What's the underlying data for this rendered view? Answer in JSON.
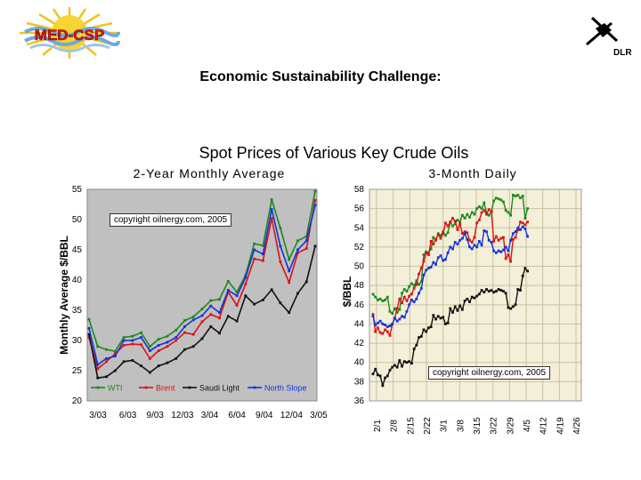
{
  "slide": {
    "title": "Economic Sustainability Challenge:",
    "logo_left_text": "MED-CSP",
    "logo_right_text": "DLR"
  },
  "chart_data": {
    "type": "line",
    "title": "Spot Prices of Various Key Crude Oils",
    "panels": [
      {
        "subtitle": "2-Year Monthly Average",
        "ylabel": "Monthly Average   $/BBL",
        "ylim": [
          20,
          55
        ],
        "yticks": [
          20,
          25,
          30,
          35,
          40,
          45,
          50,
          55
        ],
        "xtick_labels": [
          "3/03",
          "6/03",
          "9/03",
          "12/03",
          "3/04",
          "6/04",
          "9/04",
          "12/04",
          "3/05"
        ],
        "copyright": "copyright oilnergy.com, 2005",
        "background": "#c0c0c0",
        "series": [
          {
            "name": "WTI",
            "color": "#1a8a1a",
            "values": [
              33.5,
              29.0,
              28.5,
              28.2,
              30.5,
              30.7,
              31.3,
              29.0,
              30.2,
              30.7,
              31.7,
              33.3,
              33.9,
              35.2,
              36.6,
              36.8,
              39.8,
              38.0,
              40.8,
              46.0,
              45.7,
              53.3,
              48.6,
              43.4,
              46.5,
              47.2,
              54.7
            ]
          },
          {
            "name": "Brent",
            "color": "#dd1111",
            "values": [
              30.5,
              25.3,
              26.5,
              27.8,
              29.2,
              29.4,
              29.3,
              27.0,
              28.3,
              29.0,
              30.0,
              31.3,
              31.0,
              33.1,
              34.3,
              33.7,
              38.0,
              35.8,
              39.3,
              43.5,
              43.2,
              50.2,
              43.0,
              39.6,
              44.5,
              45.2,
              53.2
            ]
          },
          {
            "name": "Saudi Light",
            "color": "#111111",
            "values": [
              31.0,
              23.8,
              24.0,
              25.0,
              26.5,
              26.7,
              25.8,
              24.7,
              25.8,
              26.3,
              27.0,
              28.5,
              29.0,
              30.3,
              32.3,
              31.2,
              34.0,
              33.2,
              37.4,
              36.0,
              36.7,
              38.4,
              36.2,
              34.6,
              37.8,
              39.7,
              45.6
            ]
          },
          {
            "name": "North Slope",
            "color": "#1133dd",
            "values": [
              32.0,
              26.0,
              27.0,
              27.4,
              30.0,
              30.0,
              30.5,
              28.3,
              29.2,
              29.7,
              30.5,
              32.3,
              33.4,
              34.1,
              35.7,
              34.6,
              38.3,
              37.4,
              40.4,
              45.0,
              44.3,
              51.7,
              45.6,
              41.5,
              45.0,
              46.5,
              52.4
            ]
          }
        ]
      },
      {
        "subtitle": "3-Month Daily",
        "ylabel": "$/BBL",
        "ylim": [
          36,
          58
        ],
        "yticks": [
          36,
          38,
          40,
          42,
          44,
          46,
          48,
          50,
          52,
          54,
          56,
          58
        ],
        "xtick_labels": [
          "2/1",
          "2/8",
          "2/15",
          "2/22",
          "3/1",
          "3/8",
          "3/15",
          "3/22",
          "3/29",
          "4/5",
          "4/12",
          "4/19",
          "4/26"
        ],
        "copyright": "copyright oilnergy.com, 2005",
        "background": "#f3efd8",
        "series": [
          {
            "name": "WTI",
            "color": "#1a8a1a",
            "x": [
              0,
              1,
              2,
              3,
              4,
              5,
              6,
              7,
              8,
              9,
              10,
              11,
              12,
              13,
              14,
              15,
              16,
              17,
              18,
              19,
              20,
              21,
              22,
              23,
              24,
              25,
              26,
              27,
              28,
              29,
              30,
              31,
              32,
              33,
              34,
              35,
              36,
              37,
              38,
              39,
              40,
              41,
              42,
              43,
              44,
              45,
              46,
              47,
              48,
              49,
              50,
              51,
              52,
              53,
              54,
              55,
              56,
              57,
              58,
              59,
              60,
              61,
              62,
              63,
              64
            ],
            "values": [
              47.1,
              46.8,
              46.5,
              46.6,
              46.4,
              46.5,
              46.8,
              45.3,
              45.1,
              45.6,
              45.2,
              45.5,
              47.2,
              47.6,
              47.4,
              47.9,
              48.2,
              48.0,
              48.5,
              48.1,
              48.4,
              51.2,
              51.5,
              51.4,
              51.8,
              53.0,
              52.7,
              53.4,
              53.2,
              53.6,
              53.2,
              53.5,
              54.6,
              54.2,
              54.4,
              54.8,
              54.6,
              55.3,
              55.0,
              55.4,
              55.1,
              55.6,
              55.4,
              56.0,
              56.2,
              56.0,
              56.6,
              55.6,
              55.3,
              55.7,
              56.8,
              57.1,
              57.0,
              56.9,
              56.7,
              55.8,
              55.6,
              55.3,
              57.4,
              57.3,
              57.4,
              57.1,
              57.3,
              55.0,
              56.0
            ]
          },
          {
            "name": "Brent",
            "color": "#dd1111",
            "x": [
              0,
              1,
              2,
              3,
              4,
              5,
              6,
              7,
              8,
              9,
              10,
              11,
              12,
              13,
              14,
              15,
              16,
              17,
              18,
              19,
              20,
              21,
              22,
              23,
              24,
              25,
              26,
              27,
              28,
              29,
              30,
              31,
              32,
              33,
              34,
              35,
              36,
              37,
              38,
              39,
              40,
              41,
              42,
              43,
              44,
              45,
              46,
              47,
              48,
              49,
              50,
              51,
              52,
              53,
              54,
              55,
              56,
              57,
              58,
              59,
              60,
              61,
              62,
              63,
              64
            ],
            "values": [
              45.0,
              43.2,
              43.6,
              43.1,
              43.0,
              43.4,
              43.2,
              42.8,
              44.0,
              44.6,
              45.6,
              46.6,
              46.2,
              46.8,
              46.4,
              46.9,
              47.1,
              47.7,
              48.1,
              49.2,
              49.8,
              50.5,
              51.4,
              51.2,
              52.6,
              52.3,
              52.8,
              53.3,
              52.9,
              53.4,
              54.5,
              54.2,
              54.6,
              55.0,
              54.7,
              53.8,
              54.4,
              53.4,
              53.6,
              53.5,
              52.7,
              52.5,
              53.0,
              54.5,
              54.8,
              55.6,
              55.8,
              55.4,
              55.9,
              55.7,
              52.6,
              53.1,
              52.7,
              52.9,
              53.0,
              50.8,
              51.2,
              50.5,
              52.8,
              53.0,
              53.8,
              54.6,
              54.5,
              54.3,
              54.6
            ]
          },
          {
            "name": "Saudi Light",
            "color": "#111111",
            "x": [
              0,
              1,
              2,
              3,
              4,
              5,
              6,
              7,
              8,
              9,
              10,
              11,
              12,
              13,
              14,
              15,
              16,
              17,
              18,
              19,
              20,
              21,
              22,
              23,
              24,
              25,
              26,
              27,
              28,
              29,
              30,
              31,
              32,
              33,
              34,
              35,
              36,
              37,
              38,
              39,
              40,
              41,
              42,
              43,
              44,
              45,
              46,
              47,
              48,
              49,
              50,
              51,
              52,
              53,
              54,
              55,
              56,
              57,
              58,
              59,
              60,
              61,
              62,
              63,
              64
            ],
            "values": [
              38.8,
              39.3,
              38.7,
              38.6,
              37.6,
              38.4,
              38.6,
              39.2,
              39.5,
              39.7,
              39.5,
              40.2,
              39.6,
              40.1,
              40.0,
              40.1,
              39.9,
              41.4,
              41.8,
              42.6,
              42.7,
              43.4,
              43.2,
              43.6,
              43.7,
              44.9,
              44.5,
              44.8,
              44.6,
              44.7,
              44.0,
              44.1,
              45.6,
              45.2,
              45.8,
              45.4,
              45.9,
              45.5,
              46.4,
              46.6,
              46.3,
              46.8,
              46.7,
              46.9,
              47.1,
              47.5,
              47.3,
              47.6,
              47.4,
              47.5,
              47.3,
              47.4,
              47.6,
              47.5,
              47.4,
              47.2,
              45.7,
              45.6,
              45.8,
              46.0,
              47.6,
              47.5,
              49.0,
              49.8,
              49.5
            ]
          },
          {
            "name": "North Slope",
            "color": "#1133dd",
            "x": [
              0,
              1,
              2,
              3,
              4,
              5,
              6,
              7,
              8,
              9,
              10,
              11,
              12,
              13,
              14,
              15,
              16,
              17,
              18,
              19,
              20,
              21,
              22,
              23,
              24,
              25,
              26,
              27,
              28,
              29,
              30,
              31,
              32,
              33,
              34,
              35,
              36,
              37,
              38,
              39,
              40,
              41,
              42,
              43,
              44,
              45,
              46,
              47,
              48,
              49,
              50,
              51,
              52,
              53,
              54,
              55,
              56,
              57,
              58,
              59,
              60,
              61,
              62,
              63,
              64
            ],
            "values": [
              44.8,
              43.9,
              44.1,
              44.3,
              44.0,
              43.9,
              43.7,
              43.8,
              44.0,
              44.6,
              44.3,
              44.5,
              44.8,
              44.7,
              45.3,
              46.0,
              46.5,
              46.3,
              46.6,
              47.2,
              47.7,
              49.1,
              49.6,
              49.8,
              49.9,
              50.4,
              50.2,
              50.9,
              51.1,
              50.6,
              50.7,
              51.4,
              52.0,
              51.8,
              52.5,
              52.3,
              52.7,
              52.9,
              53.4,
              52.8,
              52.0,
              51.8,
              52.2,
              52.0,
              52.6,
              52.2,
              53.7,
              53.6,
              52.7,
              52.5,
              51.6,
              51.4,
              51.6,
              51.5,
              51.7,
              52.0,
              51.6,
              52.7,
              53.4,
              53.6,
              54.0,
              53.8,
              54.1,
              53.9,
              53.1
            ]
          }
        ]
      }
    ],
    "legend": [
      {
        "name": "WTI",
        "color": "#1a8a1a"
      },
      {
        "name": "Brent",
        "color": "#dd1111"
      },
      {
        "name": "Saudi Light",
        "color": "#111111"
      },
      {
        "name": "North Slope",
        "color": "#1133dd"
      }
    ]
  }
}
